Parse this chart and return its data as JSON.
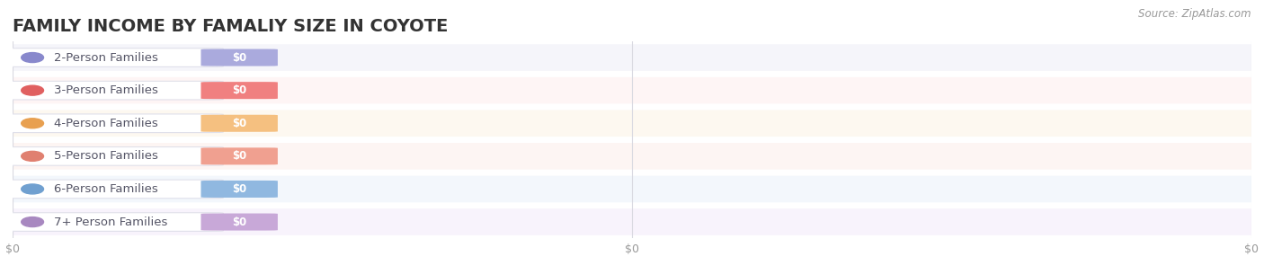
{
  "title": "FAMILY INCOME BY FAMALIY SIZE IN COYOTE",
  "source": "Source: ZipAtlas.com",
  "categories": [
    "2-Person Families",
    "3-Person Families",
    "4-Person Families",
    "5-Person Families",
    "6-Person Families",
    "7+ Person Families"
  ],
  "values": [
    0,
    0,
    0,
    0,
    0,
    0
  ],
  "badge_colors": [
    "#aaaadd",
    "#f08080",
    "#f5c080",
    "#f0a090",
    "#90b8e0",
    "#c8a8d8"
  ],
  "dot_colors": [
    "#8888cc",
    "#e06060",
    "#e8a050",
    "#e08070",
    "#70a0d0",
    "#a888c0"
  ],
  "row_bg_colors": [
    "#f5f5fa",
    "#fef5f5",
    "#fdf8f0",
    "#fdf5f3",
    "#f3f7fc",
    "#f8f3fc"
  ],
  "pill_bg_color": "#ffffff",
  "title_fontsize": 14,
  "label_fontsize": 9.5,
  "background_color": "#ffffff",
  "grid_color": "#d8d8e0"
}
